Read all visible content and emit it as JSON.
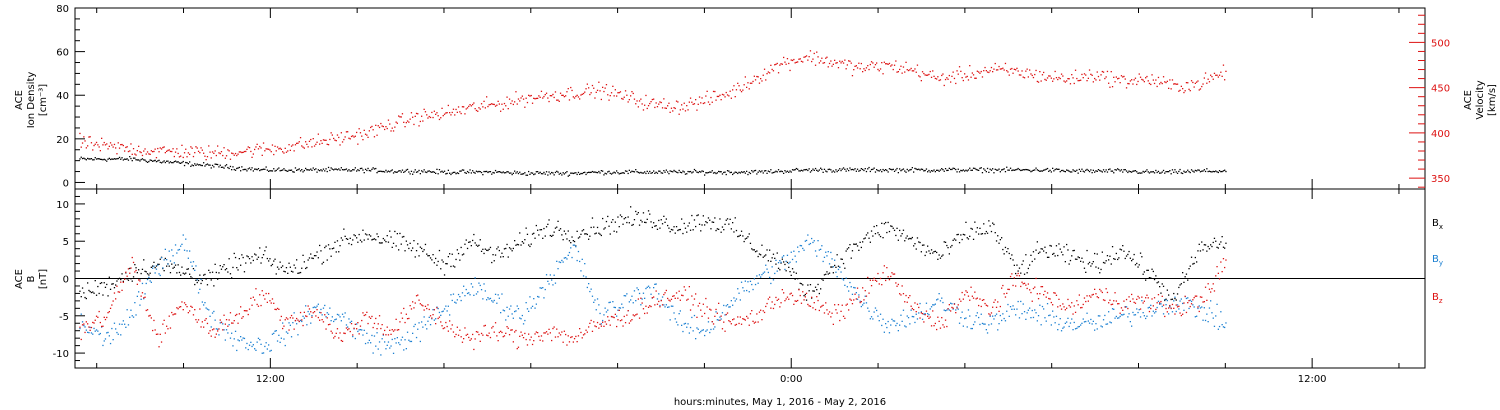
{
  "chart_data": [
    {
      "type": "scatter",
      "title": "",
      "xlabel": "hours:minutes, May  1, 2016 - May  2, 2016",
      "x_unit": "hours since 2016-05-01 00:00",
      "xlim": [
        7.5,
        38.6
      ],
      "x_major_ticks": [
        {
          "value": 12,
          "label": "12:00"
        },
        {
          "value": 24,
          "label": "0:00"
        },
        {
          "value": 36,
          "label": "12:00"
        }
      ],
      "y_left": {
        "label_lines": [
          "ACE",
          "Ion Density"
        ],
        "unit_label": "[cm⁻³]",
        "ylim": [
          -3,
          80
        ],
        "ticks": [
          0,
          20,
          40,
          60,
          80
        ]
      },
      "y_right": {
        "label_lines": [
          "ACE",
          "Velocity"
        ],
        "unit_label": "[km/s]",
        "ylim": [
          338,
          538
        ],
        "ticks": [
          350,
          400,
          450,
          500
        ],
        "color": "#dd1111"
      },
      "series": [
        {
          "axis": "left",
          "color": "#000000",
          "points": [
            [
              7.6,
              11
            ],
            [
              8.2,
              11
            ],
            [
              8.8,
              11
            ],
            [
              9.4,
              10
            ],
            [
              10.0,
              9
            ],
            [
              10.6,
              8
            ],
            [
              11.2,
              7
            ],
            [
              11.8,
              6
            ],
            [
              12.4,
              6
            ],
            [
              13.0,
              6
            ],
            [
              13.6,
              6
            ],
            [
              14.2,
              6
            ],
            [
              14.8,
              5.5
            ],
            [
              15.4,
              5.5
            ],
            [
              16.0,
              5
            ],
            [
              16.6,
              5
            ],
            [
              17.2,
              5
            ],
            [
              17.8,
              4.5
            ],
            [
              18.4,
              4.5
            ],
            [
              19.0,
              4.5
            ],
            [
              19.6,
              5
            ],
            [
              20.2,
              5
            ],
            [
              20.8,
              5
            ],
            [
              21.4,
              5
            ],
            [
              22.0,
              5
            ],
            [
              22.6,
              5
            ],
            [
              23.2,
              5
            ],
            [
              23.8,
              5.5
            ],
            [
              24.4,
              6
            ],
            [
              25.0,
              6
            ],
            [
              25.6,
              6
            ],
            [
              26.2,
              6
            ],
            [
              26.8,
              6
            ],
            [
              27.4,
              6
            ],
            [
              28.0,
              6
            ],
            [
              28.6,
              6
            ],
            [
              29.2,
              6
            ],
            [
              29.8,
              6
            ],
            [
              30.4,
              5.5
            ],
            [
              31.0,
              5.5
            ],
            [
              31.6,
              5.5
            ],
            [
              32.2,
              5
            ],
            [
              32.8,
              5
            ],
            [
              33.4,
              5.5
            ],
            [
              34.0,
              5.5
            ]
          ],
          "scatter_amplitude": 1.5
        },
        {
          "axis": "right",
          "color": "#dd1111",
          "points": [
            [
              7.6,
              390
            ],
            [
              8.2,
              385
            ],
            [
              8.8,
              383
            ],
            [
              9.4,
              380
            ],
            [
              10.0,
              380
            ],
            [
              10.6,
              378
            ],
            [
              11.2,
              380
            ],
            [
              11.8,
              382
            ],
            [
              12.4,
              385
            ],
            [
              13.0,
              390
            ],
            [
              13.6,
              395
            ],
            [
              14.2,
              400
            ],
            [
              14.8,
              410
            ],
            [
              15.4,
              418
            ],
            [
              16.0,
              422
            ],
            [
              16.6,
              428
            ],
            [
              17.2,
              432
            ],
            [
              17.8,
              438
            ],
            [
              18.4,
              442
            ],
            [
              19.0,
              445
            ],
            [
              19.6,
              448
            ],
            [
              20.2,
              440
            ],
            [
              20.8,
              432
            ],
            [
              21.4,
              430
            ],
            [
              22.0,
              436
            ],
            [
              22.6,
              445
            ],
            [
              23.2,
              462
            ],
            [
              23.8,
              478
            ],
            [
              24.4,
              485
            ],
            [
              25.0,
              478
            ],
            [
              25.6,
              472
            ],
            [
              26.2,
              475
            ],
            [
              26.8,
              470
            ],
            [
              27.4,
              460
            ],
            [
              28.0,
              465
            ],
            [
              28.6,
              470
            ],
            [
              29.2,
              468
            ],
            [
              29.8,
              463
            ],
            [
              30.4,
              460
            ],
            [
              31.0,
              465
            ],
            [
              31.6,
              458
            ],
            [
              32.2,
              460
            ],
            [
              32.8,
              452
            ],
            [
              33.4,
              455
            ],
            [
              34.0,
              468
            ]
          ],
          "scatter_amplitude": 12
        }
      ]
    },
    {
      "type": "scatter",
      "title": "",
      "xlabel": "hours:minutes, May  1, 2016 - May  2, 2016",
      "x_unit": "hours since 2016-05-01 00:00",
      "xlim": [
        7.5,
        38.6
      ],
      "y": {
        "label_lines": [
          "ACE",
          "B"
        ],
        "unit_label": "[nT]",
        "ylim": [
          -12,
          12
        ],
        "ticks": [
          -10,
          -5,
          0,
          5,
          10
        ],
        "zero_line": true
      },
      "legend": [
        {
          "label": "B",
          "subscript": "x",
          "color": "#000000"
        },
        {
          "label": "B",
          "subscript": "y",
          "color": "#1a7fd1"
        },
        {
          "label": "B",
          "subscript": "z",
          "color": "#dd1111"
        }
      ],
      "legend_placement": "right",
      "series": [
        {
          "name": "Bx",
          "color": "#000000",
          "points": [
            [
              7.6,
              -2
            ],
            [
              8.2,
              -1
            ],
            [
              8.8,
              1
            ],
            [
              9.4,
              2
            ],
            [
              10.0,
              1
            ],
            [
              10.6,
              0
            ],
            [
              11.2,
              2
            ],
            [
              11.8,
              3
            ],
            [
              12.4,
              1
            ],
            [
              13.0,
              3
            ],
            [
              13.6,
              5
            ],
            [
              14.2,
              6
            ],
            [
              14.8,
              5
            ],
            [
              15.4,
              4
            ],
            [
              16.0,
              2
            ],
            [
              16.6,
              5
            ],
            [
              17.2,
              3
            ],
            [
              17.8,
              5
            ],
            [
              18.4,
              7
            ],
            [
              19.0,
              6
            ],
            [
              19.6,
              7
            ],
            [
              20.2,
              8
            ],
            [
              20.8,
              8
            ],
            [
              21.4,
              7
            ],
            [
              22.0,
              8
            ],
            [
              22.6,
              7
            ],
            [
              23.2,
              4
            ],
            [
              23.8,
              2
            ],
            [
              24.4,
              -2
            ],
            [
              25.0,
              2
            ],
            [
              25.6,
              5
            ],
            [
              26.2,
              7
            ],
            [
              26.8,
              5
            ],
            [
              27.4,
              3
            ],
            [
              28.0,
              6
            ],
            [
              28.6,
              7
            ],
            [
              29.2,
              1
            ],
            [
              29.8,
              4
            ],
            [
              30.4,
              3
            ],
            [
              31.0,
              2
            ],
            [
              31.6,
              4
            ],
            [
              32.2,
              1
            ],
            [
              32.8,
              -3
            ],
            [
              33.4,
              4
            ],
            [
              34.0,
              5
            ]
          ],
          "scatter_amplitude": 2.0
        },
        {
          "name": "By",
          "color": "#1a7fd1",
          "points": [
            [
              7.6,
              -6
            ],
            [
              8.2,
              -8
            ],
            [
              8.8,
              -5
            ],
            [
              9.4,
              2
            ],
            [
              10.0,
              5
            ],
            [
              10.6,
              -5
            ],
            [
              11.2,
              -8
            ],
            [
              11.8,
              -9
            ],
            [
              12.4,
              -7
            ],
            [
              13.0,
              -4
            ],
            [
              13.6,
              -5
            ],
            [
              14.2,
              -8
            ],
            [
              14.8,
              -9
            ],
            [
              15.4,
              -7
            ],
            [
              16.0,
              -4
            ],
            [
              16.6,
              -1
            ],
            [
              17.2,
              -3
            ],
            [
              17.8,
              -5
            ],
            [
              18.4,
              0
            ],
            [
              19.0,
              4
            ],
            [
              19.6,
              -5
            ],
            [
              20.2,
              -3
            ],
            [
              20.8,
              -1
            ],
            [
              21.4,
              -6
            ],
            [
              22.0,
              -7
            ],
            [
              22.6,
              -3
            ],
            [
              23.2,
              0
            ],
            [
              23.8,
              2
            ],
            [
              24.4,
              5
            ],
            [
              25.0,
              2
            ],
            [
              25.6,
              -3
            ],
            [
              26.2,
              -6
            ],
            [
              26.8,
              -5
            ],
            [
              27.4,
              -3
            ],
            [
              28.0,
              -5
            ],
            [
              28.6,
              -6
            ],
            [
              29.2,
              -4
            ],
            [
              29.8,
              -5
            ],
            [
              30.4,
              -6
            ],
            [
              31.0,
              -6
            ],
            [
              31.6,
              -5
            ],
            [
              32.2,
              -4
            ],
            [
              32.8,
              -3
            ],
            [
              33.4,
              -4
            ],
            [
              34.0,
              -6
            ]
          ],
          "scatter_amplitude": 2.2
        },
        {
          "name": "Bz",
          "color": "#dd1111",
          "points": [
            [
              7.6,
              -7
            ],
            [
              8.2,
              -5
            ],
            [
              8.8,
              2
            ],
            [
              9.4,
              -8
            ],
            [
              10.0,
              -3
            ],
            [
              10.6,
              -7
            ],
            [
              11.2,
              -5
            ],
            [
              11.8,
              -2
            ],
            [
              12.4,
              -6
            ],
            [
              13.0,
              -4
            ],
            [
              13.6,
              -8
            ],
            [
              14.2,
              -5
            ],
            [
              14.8,
              -7
            ],
            [
              15.4,
              -3
            ],
            [
              16.0,
              -6
            ],
            [
              16.6,
              -8
            ],
            [
              17.2,
              -7
            ],
            [
              17.8,
              -8
            ],
            [
              18.4,
              -7
            ],
            [
              19.0,
              -8
            ],
            [
              19.6,
              -6
            ],
            [
              20.2,
              -5
            ],
            [
              20.8,
              -3
            ],
            [
              21.4,
              -2
            ],
            [
              22.0,
              -4
            ],
            [
              22.6,
              -6
            ],
            [
              23.2,
              -5
            ],
            [
              23.8,
              -2
            ],
            [
              24.4,
              -3
            ],
            [
              25.0,
              -5
            ],
            [
              25.6,
              -2
            ],
            [
              26.2,
              1
            ],
            [
              26.8,
              -4
            ],
            [
              27.4,
              -6
            ],
            [
              28.0,
              -2
            ],
            [
              28.6,
              -4
            ],
            [
              29.2,
              0
            ],
            [
              29.8,
              -2
            ],
            [
              30.4,
              -4
            ],
            [
              31.0,
              -2
            ],
            [
              31.6,
              -3
            ],
            [
              32.2,
              -3
            ],
            [
              32.8,
              -4
            ],
            [
              33.4,
              -3
            ],
            [
              34.0,
              2
            ]
          ],
          "scatter_amplitude": 2.0
        }
      ]
    }
  ]
}
